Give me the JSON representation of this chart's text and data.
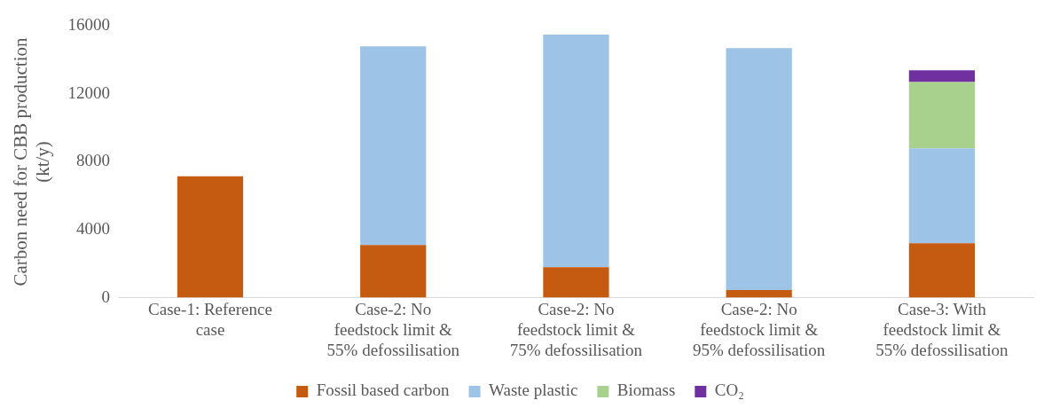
{
  "chart_data": {
    "type": "bar",
    "stacked": true,
    "ylabel": "Carbon need for CBB production\n(kt/y)",
    "categories": [
      "Case-1: Reference\ncase",
      "Case-2: No\nfeedstock limit &\n55% defossilisation",
      "Case-2: No\nfeedstock limit &\n75% defossilisation",
      "Case-2: No\nfeedstock limit &\n95% defossilisation",
      "Case-3: With\nfeedstock limit &\n55% defossilisation"
    ],
    "series": [
      {
        "name": "Fossil based carbon",
        "color": "#c55a11",
        "values": [
          7150,
          3100,
          1800,
          450,
          3200
        ]
      },
      {
        "name": "Waste plastic",
        "color": "#9dc3e6",
        "values": [
          null,
          11700,
          13700,
          14250,
          5600
        ]
      },
      {
        "name": "Biomass",
        "color": "#a9d18e",
        "values": [
          null,
          null,
          null,
          null,
          3900
        ]
      },
      {
        "name": "CO₂",
        "color": "#7030a0",
        "values": [
          null,
          null,
          null,
          null,
          700
        ]
      }
    ],
    "ylim": [
      0,
      16000
    ],
    "yticks": [
      0,
      4000,
      8000,
      12000,
      16000
    ],
    "grid": false,
    "legend": "bottom"
  }
}
